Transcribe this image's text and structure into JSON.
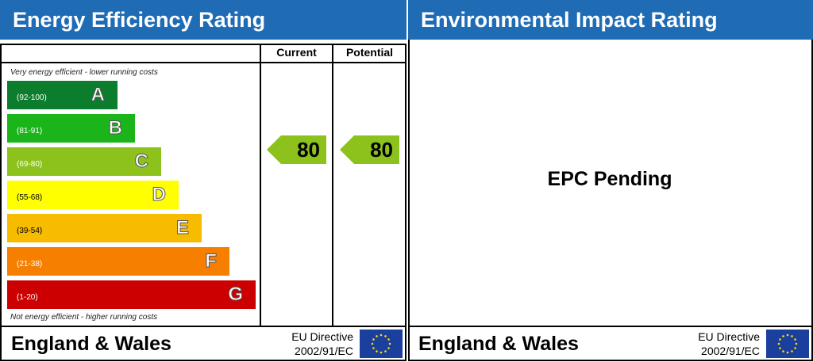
{
  "energy": {
    "title": "Energy Efficiency Rating",
    "col_current": "Current",
    "col_potential": "Potential",
    "top_note": "Very energy efficient - lower running costs",
    "bottom_note": "Not energy efficient - higher running costs",
    "current": "80",
    "potential": "80",
    "footer": {
      "region": "England & Wales",
      "directive_line1": "EU Directive",
      "directive_line2": "2002/91/EC"
    }
  },
  "environmental": {
    "title": "Environmental Impact Rating",
    "status": "EPC Pending",
    "footer": {
      "region": "England & Wales",
      "directive_line1": "EU Directive",
      "directive_line2": "2002/91/EC"
    }
  },
  "chart_data": {
    "type": "bar",
    "categories": [
      "A",
      "B",
      "C",
      "D",
      "E",
      "F",
      "G"
    ],
    "ranges": [
      "(92-100)",
      "(81-91)",
      "(69-80)",
      "(55-68)",
      "(39-54)",
      "(21-38)",
      "(1-20)"
    ],
    "colors": [
      "#0c7d2c",
      "#1bb51b",
      "#8cc21b",
      "#ffff00",
      "#f7bb00",
      "#f77f00",
      "#cc0000"
    ],
    "current_value": 80,
    "potential_value": 80,
    "current_band": "C",
    "potential_band": "C"
  }
}
